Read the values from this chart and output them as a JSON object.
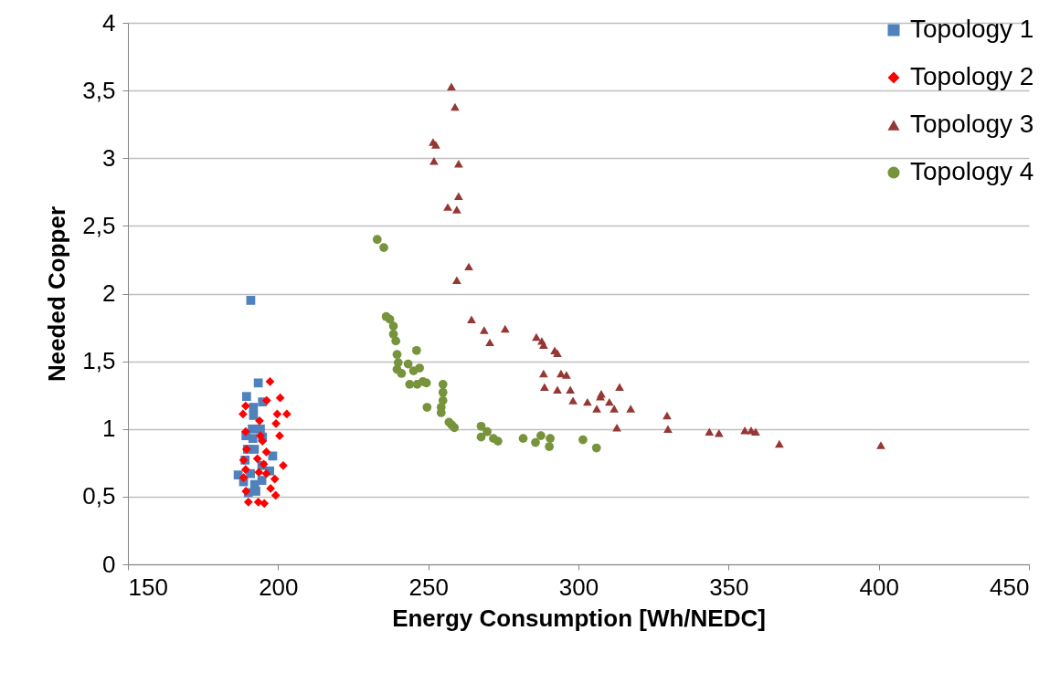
{
  "chart_data": {
    "type": "scatter",
    "xlabel": "Energy Consumption [Wh/NEDC]",
    "ylabel": "Needed Copper",
    "xlim": [
      150,
      450
    ],
    "xticks": [
      150,
      200,
      250,
      300,
      350,
      400,
      450
    ],
    "ylim": [
      0,
      4
    ],
    "yticks": [
      0,
      {
        "value": 0.5,
        "label": "0,5"
      },
      1,
      {
        "value": 1.5,
        "label": "1,5"
      },
      2,
      {
        "value": 2.5,
        "label": "2,5"
      },
      3,
      {
        "value": 3.5,
        "label": "3,5"
      },
      4
    ],
    "grid": "y",
    "legend": "top right",
    "series": [
      {
        "name": "Topology 1",
        "color": "#4f81bd",
        "marker": "square",
        "x": [
          190.9,
          193.4,
          189.5,
          194.8,
          191.8,
          191.8,
          191.4,
          194.1,
          189.3,
          194.8,
          191.6,
          189.8,
          192.1,
          198.2,
          189.0,
          194.6,
          197.2,
          186.7,
          190.8,
          194.6,
          192.2,
          188.5,
          192.6,
          190.1
        ],
        "values": [
          1.95,
          1.34,
          1.24,
          1.2,
          1.16,
          1.1,
          1.0,
          1.0,
          0.95,
          0.94,
          0.93,
          0.85,
          0.85,
          0.8,
          0.77,
          0.73,
          0.69,
          0.66,
          0.67,
          0.62,
          0.59,
          0.61,
          0.54,
          0.53
        ]
      },
      {
        "name": "Topology 2",
        "color": "#ff0000",
        "marker": "diamond",
        "x": [
          197.3,
          196.2,
          200.7,
          189.2,
          188.3,
          199.7,
          202.9,
          193.8,
          199.3,
          189.2,
          200.5,
          194.1,
          194.8,
          189.5,
          196.1,
          193.1,
          188.5,
          195.2,
          201.7,
          189.2,
          193.6,
          196.1,
          188.5,
          198.9,
          189.3,
          197.5,
          199.2,
          190.1,
          193.4,
          195.4
        ],
        "values": [
          1.35,
          1.21,
          1.23,
          1.17,
          1.11,
          1.11,
          1.11,
          1.06,
          1.04,
          0.98,
          0.95,
          0.95,
          0.91,
          0.85,
          0.83,
          0.78,
          0.77,
          0.74,
          0.73,
          0.7,
          0.68,
          0.67,
          0.64,
          0.63,
          0.54,
          0.56,
          0.51,
          0.46,
          0.46,
          0.45
        ]
      },
      {
        "name": "Topology 3",
        "color": "#953735",
        "marker": "triangle",
        "x": [
          257.7,
          258.9,
          251.6,
          252.5,
          251.9,
          260.1,
          260.1,
          256.5,
          259.5,
          263.5,
          259.5,
          264.4,
          268.6,
          275.6,
          270.5,
          286.0,
          287.8,
          288.4,
          292.1,
          293.0,
          288.4,
          294.2,
          296.0,
          288.7,
          293.0,
          297.3,
          298.2,
          303.0,
          307.3,
          307.6,
          313.7,
          310.3,
          306.1,
          311.9,
          317.4,
          312.8,
          329.5,
          329.8,
          343.6,
          346.8,
          355.4,
          357.5,
          359.0,
          366.9,
          400.7
        ],
        "values": [
          3.53,
          3.38,
          3.12,
          3.1,
          2.98,
          2.96,
          2.72,
          2.64,
          2.62,
          2.2,
          2.1,
          1.81,
          1.73,
          1.74,
          1.64,
          1.68,
          1.65,
          1.62,
          1.58,
          1.56,
          1.41,
          1.41,
          1.4,
          1.31,
          1.29,
          1.29,
          1.21,
          1.2,
          1.24,
          1.26,
          1.31,
          1.2,
          1.15,
          1.15,
          1.15,
          1.01,
          1.1,
          1.0,
          0.98,
          0.97,
          0.99,
          0.99,
          0.98,
          0.89,
          0.88
        ]
      },
      {
        "name": "Topology 4",
        "color": "#77933c",
        "marker": "circle",
        "x": [
          233.0,
          235.2,
          236.0,
          237.2,
          238.4,
          238.4,
          239.2,
          239.6,
          240.0,
          239.6,
          241.1,
          243.3,
          246.1,
          245.1,
          247.1,
          243.8,
          246.3,
          248.2,
          249.4,
          249.6,
          254.9,
          254.9,
          254.9,
          254.3,
          254.3,
          256.9,
          257.8,
          258.7,
          267.6,
          269.6,
          267.6,
          271.7,
          273.2,
          281.6,
          285.7,
          287.5,
          290.6,
          290.3,
          301.5,
          306.0
        ],
        "values": [
          2.4,
          2.34,
          1.83,
          1.81,
          1.76,
          1.7,
          1.65,
          1.55,
          1.49,
          1.44,
          1.41,
          1.48,
          1.58,
          1.43,
          1.45,
          1.33,
          1.33,
          1.35,
          1.34,
          1.16,
          1.33,
          1.27,
          1.21,
          1.16,
          1.12,
          1.05,
          1.03,
          1.01,
          1.02,
          0.98,
          0.94,
          0.93,
          0.91,
          0.93,
          0.9,
          0.95,
          0.93,
          0.87,
          0.92,
          0.86
        ]
      }
    ]
  }
}
